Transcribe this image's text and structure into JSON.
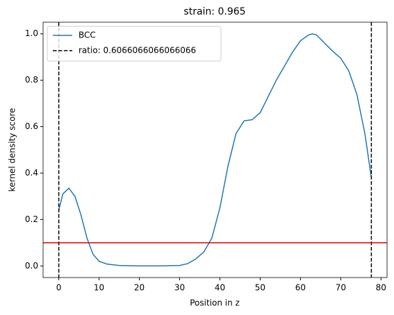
{
  "chart_data": {
    "type": "line",
    "title": "strain: 0.965",
    "xlabel": "Position in z",
    "ylabel": "kernel density score",
    "x": [
      0,
      1,
      2.5,
      4,
      5.5,
      7,
      8.5,
      10,
      12,
      15,
      20,
      25,
      30,
      32,
      34,
      36,
      38,
      40,
      42,
      44,
      46,
      48,
      50,
      52,
      54,
      56,
      58,
      60,
      62,
      63,
      64,
      66,
      68,
      70,
      72,
      74,
      76,
      77.6
    ],
    "series": [
      {
        "name": "BCC",
        "color": "#1f77b4",
        "values": [
          0.24,
          0.31,
          0.335,
          0.3,
          0.22,
          0.12,
          0.05,
          0.02,
          0.008,
          0.002,
          0,
          0,
          0.002,
          0.01,
          0.03,
          0.06,
          0.12,
          0.25,
          0.43,
          0.57,
          0.625,
          0.63,
          0.66,
          0.73,
          0.8,
          0.86,
          0.92,
          0.97,
          0.995,
          1.0,
          0.995,
          0.96,
          0.925,
          0.895,
          0.84,
          0.74,
          0.57,
          0.38
        ]
      }
    ],
    "vlines": {
      "label": "ratio: 0.6066066066066066",
      "color": "#000000",
      "values": [
        0,
        77.6
      ]
    },
    "hline": {
      "value": 0.1,
      "color": "#e00000"
    },
    "xlim": [
      -3.9,
      81.5
    ],
    "ylim": [
      -0.05,
      1.05
    ],
    "xticks": [
      0,
      10,
      20,
      30,
      40,
      50,
      60,
      70,
      80
    ],
    "yticks": [
      {
        "value": 0,
        "label": "0.0"
      },
      {
        "value": 0.2,
        "label": "0.2"
      },
      {
        "value": 0.4,
        "label": "0.4"
      },
      {
        "value": 0.6,
        "label": "0.6"
      },
      {
        "value": 0.8,
        "label": "0.8"
      },
      {
        "value": 1,
        "label": "1.0"
      }
    ],
    "legend": "upper-left"
  }
}
